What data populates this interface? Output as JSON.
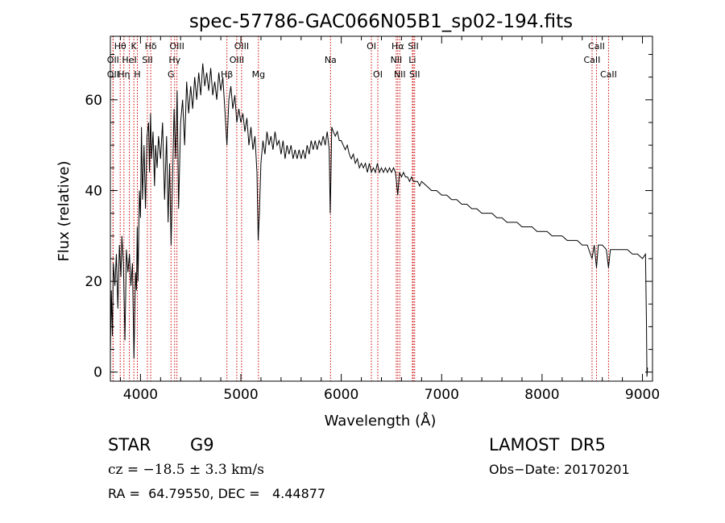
{
  "chart_data": {
    "type": "line",
    "title": "spec-57786-GAC066N05B1_sp02-194.fits",
    "xlabel": "Wavelength (Å)",
    "ylabel": "Flux (relative)",
    "xlim": [
      3700,
      9100
    ],
    "ylim": [
      -2,
      74
    ],
    "xticks": [
      4000,
      5000,
      6000,
      7000,
      8000,
      9000
    ],
    "yticks": [
      0,
      20,
      40,
      60
    ],
    "grid": false,
    "colors": {
      "spectrum": "#000000",
      "lines": "#cc0000",
      "axes": "#000000"
    },
    "series": [
      {
        "points": [
          [
            3700,
            4
          ],
          [
            3710,
            18
          ],
          [
            3720,
            8
          ],
          [
            3730,
            24
          ],
          [
            3745,
            19
          ],
          [
            3760,
            26
          ],
          [
            3775,
            14
          ],
          [
            3790,
            28
          ],
          [
            3805,
            21
          ],
          [
            3815,
            30
          ],
          [
            3830,
            24
          ],
          [
            3845,
            7
          ],
          [
            3860,
            27
          ],
          [
            3875,
            22
          ],
          [
            3890,
            26
          ],
          [
            3905,
            19
          ],
          [
            3920,
            24
          ],
          [
            3935,
            3
          ],
          [
            3950,
            22
          ],
          [
            3960,
            18
          ],
          [
            3968,
            32
          ],
          [
            3975,
            20
          ],
          [
            3990,
            40
          ],
          [
            4000,
            34
          ],
          [
            4010,
            54
          ],
          [
            4020,
            38
          ],
          [
            4035,
            50
          ],
          [
            4050,
            36
          ],
          [
            4065,
            52
          ],
          [
            4080,
            55
          ],
          [
            4090,
            44
          ],
          [
            4100,
            57
          ],
          [
            4110,
            47
          ],
          [
            4125,
            53
          ],
          [
            4140,
            41
          ],
          [
            4150,
            50
          ],
          [
            4165,
            45
          ],
          [
            4180,
            52
          ],
          [
            4200,
            47
          ],
          [
            4220,
            55
          ],
          [
            4240,
            38
          ],
          [
            4260,
            52
          ],
          [
            4275,
            33
          ],
          [
            4290,
            46
          ],
          [
            4305,
            28
          ],
          [
            4320,
            43
          ],
          [
            4335,
            58
          ],
          [
            4350,
            47
          ],
          [
            4365,
            62
          ],
          [
            4380,
            36
          ],
          [
            4400,
            55
          ],
          [
            4420,
            60
          ],
          [
            4440,
            50
          ],
          [
            4460,
            64
          ],
          [
            4480,
            57
          ],
          [
            4500,
            63
          ],
          [
            4520,
            58
          ],
          [
            4540,
            65
          ],
          [
            4560,
            60
          ],
          [
            4580,
            66
          ],
          [
            4600,
            61
          ],
          [
            4620,
            68
          ],
          [
            4640,
            63
          ],
          [
            4660,
            66
          ],
          [
            4680,
            62
          ],
          [
            4700,
            67
          ],
          [
            4720,
            61
          ],
          [
            4740,
            64
          ],
          [
            4760,
            60
          ],
          [
            4780,
            66
          ],
          [
            4800,
            62
          ],
          [
            4820,
            65
          ],
          [
            4840,
            58
          ],
          [
            4861,
            50
          ],
          [
            4880,
            60
          ],
          [
            4900,
            63
          ],
          [
            4920,
            58
          ],
          [
            4940,
            61
          ],
          [
            4960,
            55
          ],
          [
            4980,
            58
          ],
          [
            5000,
            55
          ],
          [
            5020,
            57
          ],
          [
            5040,
            53
          ],
          [
            5060,
            56
          ],
          [
            5080,
            50
          ],
          [
            5100,
            54
          ],
          [
            5120,
            49
          ],
          [
            5140,
            52
          ],
          [
            5160,
            44
          ],
          [
            5172,
            29
          ],
          [
            5184,
            35
          ],
          [
            5200,
            46
          ],
          [
            5220,
            51
          ],
          [
            5240,
            48
          ],
          [
            5260,
            53
          ],
          [
            5280,
            50
          ],
          [
            5300,
            52
          ],
          [
            5320,
            49
          ],
          [
            5340,
            53
          ],
          [
            5360,
            50
          ],
          [
            5380,
            51
          ],
          [
            5400,
            48
          ],
          [
            5420,
            51
          ],
          [
            5440,
            47
          ],
          [
            5460,
            50
          ],
          [
            5480,
            48
          ],
          [
            5500,
            50
          ],
          [
            5520,
            47
          ],
          [
            5540,
            49
          ],
          [
            5560,
            47
          ],
          [
            5580,
            49
          ],
          [
            5600,
            47
          ],
          [
            5620,
            49
          ],
          [
            5640,
            47
          ],
          [
            5660,
            50
          ],
          [
            5680,
            48
          ],
          [
            5700,
            51
          ],
          [
            5720,
            49
          ],
          [
            5740,
            51
          ],
          [
            5760,
            49
          ],
          [
            5780,
            51
          ],
          [
            5800,
            50
          ],
          [
            5820,
            52
          ],
          [
            5840,
            50
          ],
          [
            5860,
            53
          ],
          [
            5880,
            49
          ],
          [
            5890,
            35
          ],
          [
            5896,
            42
          ],
          [
            5905,
            54
          ],
          [
            5920,
            53
          ],
          [
            5940,
            52
          ],
          [
            5960,
            53
          ],
          [
            5980,
            51
          ],
          [
            6000,
            51
          ],
          [
            6020,
            50
          ],
          [
            6040,
            49
          ],
          [
            6060,
            50
          ],
          [
            6080,
            48
          ],
          [
            6100,
            47
          ],
          [
            6120,
            48
          ],
          [
            6140,
            46
          ],
          [
            6160,
            47
          ],
          [
            6180,
            45
          ],
          [
            6200,
            46
          ],
          [
            6220,
            45
          ],
          [
            6240,
            46
          ],
          [
            6260,
            44
          ],
          [
            6280,
            46
          ],
          [
            6300,
            44
          ],
          [
            6320,
            45
          ],
          [
            6340,
            44
          ],
          [
            6360,
            46
          ],
          [
            6380,
            44
          ],
          [
            6400,
            45
          ],
          [
            6420,
            44
          ],
          [
            6440,
            45
          ],
          [
            6460,
            44
          ],
          [
            6480,
            45
          ],
          [
            6500,
            44
          ],
          [
            6520,
            45
          ],
          [
            6540,
            44
          ],
          [
            6563,
            39
          ],
          [
            6580,
            44
          ],
          [
            6600,
            43
          ],
          [
            6620,
            44
          ],
          [
            6640,
            43
          ],
          [
            6660,
            43
          ],
          [
            6680,
            42
          ],
          [
            6700,
            43
          ],
          [
            6720,
            42
          ],
          [
            6740,
            42
          ],
          [
            6760,
            42
          ],
          [
            6780,
            41
          ],
          [
            6800,
            42
          ],
          [
            6850,
            41
          ],
          [
            6900,
            40
          ],
          [
            6950,
            40
          ],
          [
            7000,
            39
          ],
          [
            7050,
            39
          ],
          [
            7100,
            38
          ],
          [
            7150,
            38
          ],
          [
            7200,
            37
          ],
          [
            7250,
            37
          ],
          [
            7300,
            36
          ],
          [
            7350,
            36
          ],
          [
            7400,
            35
          ],
          [
            7450,
            35
          ],
          [
            7500,
            35
          ],
          [
            7550,
            34
          ],
          [
            7600,
            34
          ],
          [
            7650,
            33
          ],
          [
            7700,
            33
          ],
          [
            7750,
            33
          ],
          [
            7800,
            32
          ],
          [
            7850,
            32
          ],
          [
            7900,
            32
          ],
          [
            7950,
            31
          ],
          [
            8000,
            31
          ],
          [
            8050,
            31
          ],
          [
            8100,
            30
          ],
          [
            8150,
            30
          ],
          [
            8200,
            30
          ],
          [
            8250,
            29
          ],
          [
            8300,
            29
          ],
          [
            8350,
            29
          ],
          [
            8400,
            28
          ],
          [
            8450,
            28
          ],
          [
            8498,
            25
          ],
          [
            8520,
            28
          ],
          [
            8542,
            23
          ],
          [
            8560,
            28
          ],
          [
            8600,
            28
          ],
          [
            8640,
            27
          ],
          [
            8662,
            23
          ],
          [
            8680,
            27
          ],
          [
            8720,
            27
          ],
          [
            8760,
            27
          ],
          [
            8800,
            27
          ],
          [
            8850,
            27
          ],
          [
            8900,
            26
          ],
          [
            8950,
            26
          ],
          [
            9000,
            25
          ],
          [
            9030,
            26
          ],
          [
            9040,
            11
          ],
          [
            9045,
            -1
          ],
          [
            9050,
            1
          ]
        ]
      }
    ],
    "line_markers": [
      {
        "label": "OII",
        "wavelength": 3727,
        "row": 2
      },
      {
        "label": "Hθ",
        "wavelength": 3798,
        "row": 0
      },
      {
        "label": "OII",
        "wavelength": 3727,
        "row": 1
      },
      {
        "label": "Hη",
        "wavelength": 3835,
        "row": 2
      },
      {
        "label": "K",
        "wavelength": 3934,
        "row": 0
      },
      {
        "label": "HeI",
        "wavelength": 3889,
        "row": 1
      },
      {
        "label": "H",
        "wavelength": 3969,
        "row": 2
      },
      {
        "label": "Hδ",
        "wavelength": 4102,
        "row": 0
      },
      {
        "label": "SII",
        "wavelength": 4069,
        "row": 1
      },
      {
        "label": "OIII",
        "wavelength": 4363,
        "row": 0
      },
      {
        "label": "Hγ",
        "wavelength": 4340,
        "row": 1
      },
      {
        "label": "G",
        "wavelength": 4304,
        "row": 2
      },
      {
        "label": "Hβ",
        "wavelength": 4861,
        "row": 2
      },
      {
        "label": "OIII",
        "wavelength": 5007,
        "row": 0
      },
      {
        "label": "OIII",
        "wavelength": 4959,
        "row": 1
      },
      {
        "label": "Mg",
        "wavelength": 5175,
        "row": 2
      },
      {
        "label": "Na",
        "wavelength": 5893,
        "row": 1
      },
      {
        "label": "OI",
        "wavelength": 6300,
        "row": 0
      },
      {
        "label": "OI",
        "wavelength": 6364,
        "row": 2
      },
      {
        "label": "Hα",
        "wavelength": 6563,
        "row": 0
      },
      {
        "label": "NII",
        "wavelength": 6548,
        "row": 1
      },
      {
        "label": "NII",
        "wavelength": 6583,
        "row": 2
      },
      {
        "label": "SII",
        "wavelength": 6717,
        "row": 0
      },
      {
        "label": "Li",
        "wavelength": 6708,
        "row": 1
      },
      {
        "label": "SII",
        "wavelength": 6731,
        "row": 2
      },
      {
        "label": "CaII",
        "wavelength": 8542,
        "row": 0
      },
      {
        "label": "CaII",
        "wavelength": 8498,
        "row": 1
      },
      {
        "label": "CaII",
        "wavelength": 8662,
        "row": 2
      }
    ]
  },
  "info": {
    "object_class": "STAR",
    "subclass": "G9",
    "survey": "LAMOST  DR5",
    "cz": "cz = −18.5 ± 3.3 km/s",
    "obs_date": "Obs−Date: 20170201",
    "coords": "RA =  64.79550, DEC =   4.44877"
  }
}
